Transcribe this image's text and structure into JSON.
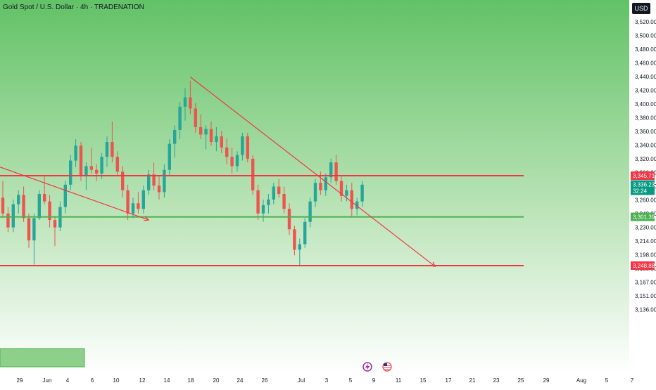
{
  "header": {
    "title": "Gold Spot / U.S. Dollar · 4h · TRADENATION",
    "currency_badge": "USD"
  },
  "colors": {
    "up": "#26a69a",
    "down": "#ef5350",
    "resistance": "#f23645",
    "support": "#4caf50",
    "trend": "#f23645",
    "bg_top": "#62c266",
    "bg_bottom": "#ffffff"
  },
  "chart_data": {
    "type": "candlestick",
    "y_ticks": [
      "3,520.00",
      "3,500.00",
      "3,480.00",
      "3,460.00",
      "3,440.00",
      "3,420.00",
      "3,400.00",
      "3,380.00",
      "3,360.00",
      "3,340.00",
      "3,320.00",
      "3,300.00",
      "3,280.00",
      "3,260.00",
      "3,240.00",
      "3,230.00",
      "3,214.00",
      "3,198.00",
      "3,183.00",
      "3,167.00",
      "3,151.00",
      "3,136.00"
    ],
    "x_ticks": [
      "29",
      "Jun",
      "4",
      "6",
      "10",
      "12",
      "14",
      "18",
      "20",
      "24",
      "26",
      "Jul",
      "3",
      "5",
      "9",
      "11",
      "15",
      "17",
      "21",
      "23",
      "25",
      "29",
      "Aug",
      "5",
      "7"
    ],
    "price_labels": [
      {
        "name": "resistance-level",
        "value": "3,345.71",
        "price": 3345.71
      },
      {
        "name": "last-price",
        "value": "3,336.23",
        "price": 3336.23
      },
      {
        "name": "countdown",
        "value": "32:24"
      },
      {
        "name": "support-level",
        "value": "3,301.39",
        "price": 3301.39
      },
      {
        "name": "lower-level",
        "value": "3,248.88",
        "price": 3248.88
      }
    ],
    "candles": [
      [
        3322,
        3340,
        3300,
        3305
      ],
      [
        3305,
        3312,
        3285,
        3290
      ],
      [
        3290,
        3320,
        3285,
        3315
      ],
      [
        3315,
        3330,
        3305,
        3325
      ],
      [
        3325,
        3334,
        3296,
        3300
      ],
      [
        3300,
        3305,
        3268,
        3276
      ],
      [
        3276,
        3305,
        3250,
        3300
      ],
      [
        3300,
        3330,
        3298,
        3326
      ],
      [
        3326,
        3345,
        3315,
        3318
      ],
      [
        3318,
        3325,
        3290,
        3298
      ],
      [
        3298,
        3302,
        3270,
        3290
      ],
      [
        3290,
        3318,
        3286,
        3312
      ],
      [
        3312,
        3340,
        3305,
        3336
      ],
      [
        3336,
        3368,
        3330,
        3362
      ],
      [
        3362,
        3385,
        3355,
        3378
      ],
      [
        3378,
        3382,
        3340,
        3345
      ],
      [
        3345,
        3360,
        3330,
        3356
      ],
      [
        3356,
        3376,
        3348,
        3352
      ],
      [
        3352,
        3358,
        3340,
        3348
      ],
      [
        3348,
        3370,
        3342,
        3366
      ],
      [
        3366,
        3388,
        3355,
        3382
      ],
      [
        3382,
        3404,
        3360,
        3366
      ],
      [
        3366,
        3372,
        3345,
        3350
      ],
      [
        3350,
        3356,
        3322,
        3330
      ],
      [
        3330,
        3336,
        3298,
        3305
      ],
      [
        3305,
        3322,
        3300,
        3316
      ],
      [
        3316,
        3328,
        3305,
        3310
      ],
      [
        3310,
        3335,
        3305,
        3330
      ],
      [
        3330,
        3352,
        3325,
        3347
      ],
      [
        3347,
        3360,
        3330,
        3335
      ],
      [
        3335,
        3345,
        3320,
        3328
      ],
      [
        3328,
        3358,
        3322,
        3352
      ],
      [
        3352,
        3385,
        3345,
        3380
      ],
      [
        3380,
        3400,
        3365,
        3395
      ],
      [
        3395,
        3425,
        3385,
        3420
      ],
      [
        3420,
        3440,
        3405,
        3430
      ],
      [
        3430,
        3448,
        3412,
        3418
      ],
      [
        3418,
        3424,
        3392,
        3398
      ],
      [
        3398,
        3412,
        3385,
        3390
      ],
      [
        3390,
        3400,
        3374,
        3396
      ],
      [
        3396,
        3404,
        3378,
        3382
      ],
      [
        3382,
        3398,
        3372,
        3388
      ],
      [
        3388,
        3394,
        3370,
        3376
      ],
      [
        3376,
        3386,
        3358,
        3366
      ],
      [
        3366,
        3376,
        3348,
        3356
      ],
      [
        3356,
        3372,
        3350,
        3368
      ],
      [
        3368,
        3392,
        3362,
        3388
      ],
      [
        3388,
        3392,
        3360,
        3364
      ],
      [
        3364,
        3368,
        3325,
        3330
      ],
      [
        3330,
        3336,
        3298,
        3305
      ],
      [
        3305,
        3320,
        3296,
        3314
      ],
      [
        3314,
        3326,
        3305,
        3320
      ],
      [
        3320,
        3338,
        3315,
        3334
      ],
      [
        3334,
        3342,
        3322,
        3326
      ],
      [
        3326,
        3334,
        3305,
        3310
      ],
      [
        3310,
        3316,
        3282,
        3288
      ],
      [
        3288,
        3292,
        3260,
        3266
      ],
      [
        3266,
        3278,
        3248,
        3272
      ],
      [
        3272,
        3300,
        3268,
        3296
      ],
      [
        3296,
        3322,
        3290,
        3318
      ],
      [
        3318,
        3342,
        3312,
        3338
      ],
      [
        3338,
        3350,
        3325,
        3330
      ],
      [
        3330,
        3348,
        3324,
        3344
      ],
      [
        3344,
        3364,
        3338,
        3360
      ],
      [
        3360,
        3368,
        3336,
        3340
      ],
      [
        3340,
        3346,
        3318,
        3324
      ],
      [
        3324,
        3336,
        3318,
        3330
      ],
      [
        3330,
        3338,
        3302,
        3310
      ],
      [
        3310,
        3322,
        3303,
        3318
      ],
      [
        3318,
        3340,
        3312,
        3336
      ]
    ],
    "lines": [
      {
        "name": "resistance-line",
        "from": {
          "i": -1,
          "p": 3345.71
        },
        "to": {
          "i": 100,
          "p": 3345.71
        }
      },
      {
        "name": "support-line",
        "from": {
          "i": -1,
          "p": 3301.39
        },
        "to": {
          "i": 100,
          "p": 3301.39
        }
      },
      {
        "name": "lower-line",
        "from": {
          "i": -1,
          "p": 3248.88
        },
        "to": {
          "i": 100,
          "p": 3248.88
        }
      },
      {
        "name": "trend-line-upper",
        "from": {
          "i": 36,
          "p": 3452
        },
        "to": {
          "i": 83,
          "p": 3248
        }
      },
      {
        "name": "trend-line-left",
        "from": {
          "i": -1,
          "p": 3355
        },
        "to": {
          "i": 28,
          "p": 3298
        }
      }
    ]
  }
}
